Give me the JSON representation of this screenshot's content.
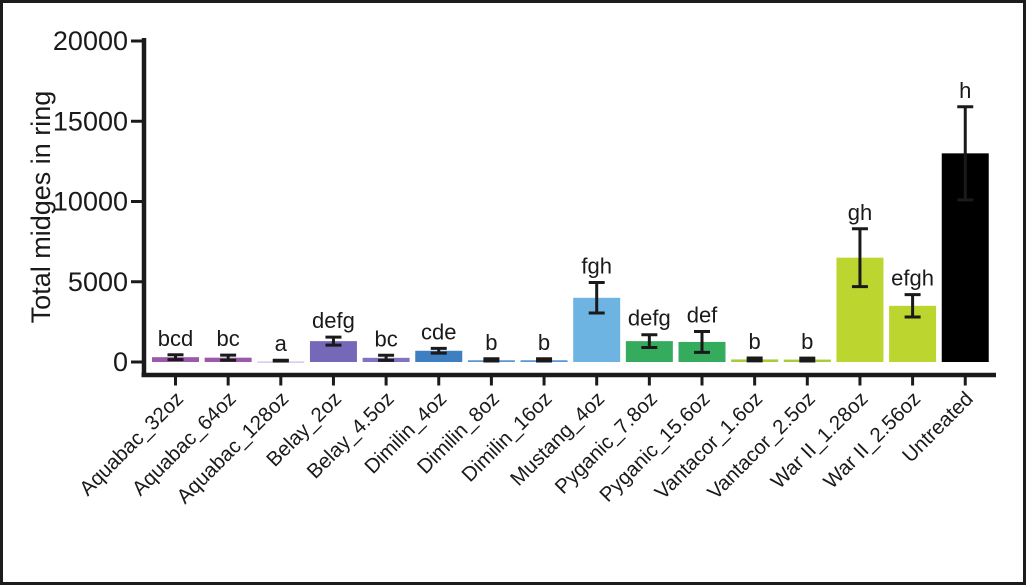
{
  "figure": {
    "background_color": "#ffffff",
    "border_color": "#1c1c1c"
  },
  "chart_data": {
    "type": "bar",
    "title": "",
    "ylabel": "Total midges in ring",
    "xlabel": "",
    "ylim": [
      0,
      20000
    ],
    "yticks": [
      0,
      5000,
      10000,
      15000,
      20000
    ],
    "grid": false,
    "legend_position": "none",
    "axis_color": "#1a1a1a",
    "error_bar_color": "#1a1a1a",
    "text_color": "#1a1a1a",
    "categories": [
      "Aquabac_32oz",
      "Aquabac_64oz",
      "Aquabac_128oz",
      "Belay_2oz",
      "Belay_4.5oz",
      "Dimilin_4oz",
      "Dimilin_8oz",
      "Dimilin_16oz",
      "Mustang_4oz",
      "Pyganic_7.8oz",
      "Pyganic_15.6oz",
      "Vantacor_1.6oz",
      "Vantacor_2.5oz",
      "War II_1.28oz",
      "War II_2.56oz",
      "Untreated"
    ],
    "values": [
      300,
      270,
      40,
      1300,
      260,
      700,
      110,
      110,
      4000,
      1300,
      1250,
      160,
      150,
      6500,
      3500,
      13000
    ],
    "errors": [
      150,
      160,
      70,
      250,
      160,
      150,
      90,
      90,
      950,
      400,
      650,
      90,
      90,
      1800,
      700,
      2900
    ],
    "sig_letters": [
      "bcd",
      "bc",
      "a",
      "defg",
      "bc",
      "cde",
      "b",
      "b",
      "fgh",
      "defg",
      "def",
      "b",
      "b",
      "gh",
      "efgh",
      "h"
    ],
    "bar_colors": [
      "#9b59a9",
      "#9b59a9",
      "#d7c7e6",
      "#7568b8",
      "#8074bf",
      "#3e7fc1",
      "#5b97d5",
      "#5b97d5",
      "#6db4e3",
      "#35ab5d",
      "#35ab5d",
      "#a6cd39",
      "#a6cd39",
      "#bdd62f",
      "#bdd62f",
      "#000000"
    ]
  }
}
